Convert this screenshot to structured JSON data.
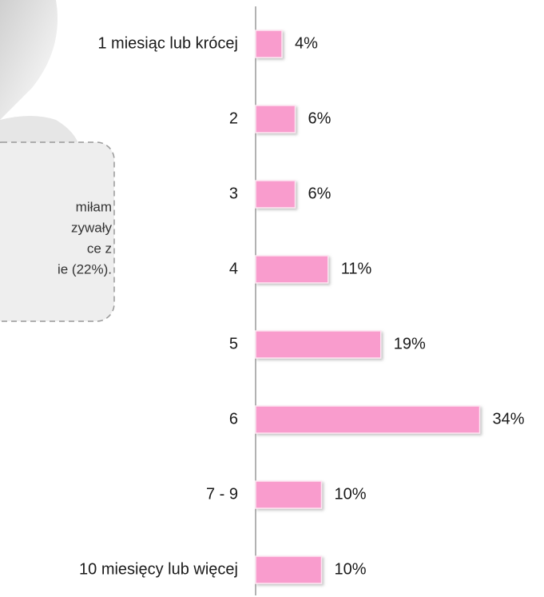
{
  "chart_data": {
    "type": "hbar",
    "categories": [
      "1 miesiąc lub krócej",
      "2",
      "3",
      "4",
      "5",
      "6",
      "7 - 9",
      "10 miesięcy lub więcej"
    ],
    "values": [
      4,
      6,
      6,
      11,
      19,
      34,
      10,
      10
    ],
    "value_labels": [
      "4%",
      "6%",
      "6%",
      "11%",
      "19%",
      "34%",
      "10%",
      "10%"
    ],
    "color": "#f99ccd",
    "xlim": [
      0,
      40
    ],
    "annotation": [
      "miłam",
      "zywały",
      "ce z",
      "ie (22%)."
    ]
  }
}
